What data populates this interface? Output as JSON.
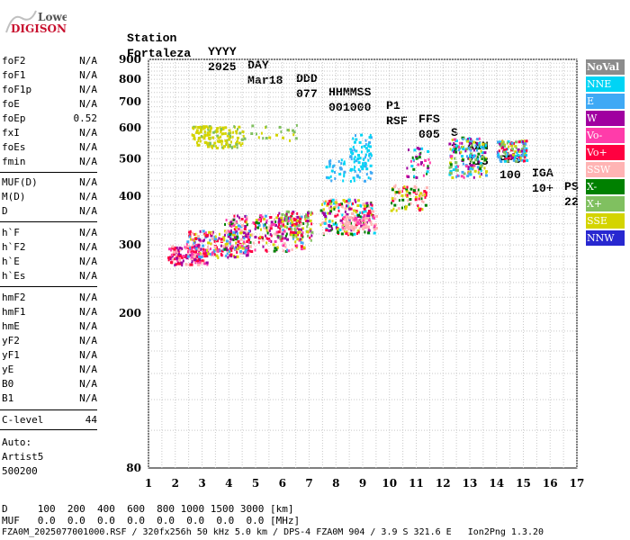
{
  "logo": {
    "top": "Lowell",
    "bottom": "DIGISONDE"
  },
  "header": {
    "labels": [
      "Station",
      "YYYY",
      "DAY",
      "DDD",
      "HHMMSS",
      "P1",
      "FFS",
      "S",
      "AXN",
      "PPS",
      "IGA",
      "PS"
    ],
    "values": [
      "Fortaleza",
      "2025",
      "Mar18",
      "077",
      "001000",
      "RSF",
      "005",
      "2",
      "713",
      "100",
      "10+",
      "22"
    ]
  },
  "params": {
    "group1": [
      {
        "k": "foF2",
        "v": "N/A"
      },
      {
        "k": "foF1",
        "v": "N/A"
      },
      {
        "k": "foF1p",
        "v": "N/A"
      },
      {
        "k": "foE",
        "v": "N/A"
      },
      {
        "k": "foEp",
        "v": "0.52"
      },
      {
        "k": "fxI",
        "v": "N/A"
      },
      {
        "k": "foEs",
        "v": "N/A"
      },
      {
        "k": "fmin",
        "v": "N/A"
      }
    ],
    "group2": [
      {
        "k": "MUF(D)",
        "v": "N/A"
      },
      {
        "k": "M(D)",
        "v": "N/A"
      },
      {
        "k": "D",
        "v": "N/A"
      }
    ],
    "group3": [
      {
        "k": "h`F",
        "v": "N/A"
      },
      {
        "k": "h`F2",
        "v": "N/A"
      },
      {
        "k": "h`E",
        "v": "N/A"
      },
      {
        "k": "h`Es",
        "v": "N/A"
      }
    ],
    "group4": [
      {
        "k": "hmF2",
        "v": "N/A"
      },
      {
        "k": "hmF1",
        "v": "N/A"
      },
      {
        "k": "hmE",
        "v": "N/A"
      },
      {
        "k": "yF2",
        "v": "N/A"
      },
      {
        "k": "yF1",
        "v": "N/A"
      },
      {
        "k": "yE",
        "v": "N/A"
      },
      {
        "k": "B0",
        "v": "N/A"
      },
      {
        "k": "B1",
        "v": "N/A"
      }
    ],
    "clevel": {
      "k": "C-level",
      "v": "44"
    },
    "auto": [
      "Auto:",
      "Artist5",
      "500200"
    ]
  },
  "legend": [
    {
      "label": "NoVal",
      "color": "#8c8c8c"
    },
    {
      "label": "NNE",
      "color": "#00d4f5"
    },
    {
      "label": "E",
      "color": "#3fa9f5"
    },
    {
      "label": "W",
      "color": "#a000a0"
    },
    {
      "label": "Vo-",
      "color": "#ff3caa"
    },
    {
      "label": "Vo+",
      "color": "#ff0040"
    },
    {
      "label": "SSW",
      "color": "#ffb4b4"
    },
    {
      "label": "X-",
      "color": "#008000"
    },
    {
      "label": "X+",
      "color": "#80c060"
    },
    {
      "label": "SSE",
      "color": "#d4d400"
    },
    {
      "label": "NNW",
      "color": "#2828d0"
    }
  ],
  "footer": {
    "line1": "D     100  200  400  600  800 1000 1500 3000 [km]",
    "line2": "MUF   0.0  0.0  0.0  0.0  0.0  0.0  0.0  0.0 [MHz]",
    "line3": "FZA0M_2025077001000.RSF / 320fx256h 50 kHz 5.0 km / DPS-4 FZA0M 904 / 3.9 S 321.6 E   Ion2Png 1.3.20"
  },
  "chart_data": {
    "type": "scatter",
    "title": "",
    "xlabel": "",
    "ylabel": "",
    "xlim": [
      1,
      17
    ],
    "ylim": [
      80,
      900
    ],
    "y_scale": "log",
    "x_ticks": [
      1,
      2,
      3,
      4,
      5,
      6,
      7,
      8,
      9,
      10,
      11,
      12,
      13,
      14,
      15,
      16,
      17
    ],
    "y_ticks": [
      80,
      200,
      300,
      400,
      500,
      600,
      700,
      800,
      900
    ],
    "grid": true,
    "legend_position": "right",
    "clusters": [
      {
        "xmin": 1.7,
        "xmax": 3.2,
        "ymin": 268,
        "ymax": 300,
        "n": 170,
        "colors": [
          "Vo+",
          "Vo+",
          "Vo-",
          "W",
          "SSW"
        ]
      },
      {
        "xmin": 2.4,
        "xmax": 4.8,
        "ymin": 280,
        "ymax": 330,
        "n": 220,
        "colors": [
          "Vo+",
          "SSW",
          "Vo-",
          "W",
          "SSE",
          "E"
        ]
      },
      {
        "xmin": 3.8,
        "xmax": 6.8,
        "ymin": 290,
        "ymax": 360,
        "n": 240,
        "colors": [
          "Vo+",
          "SSE",
          "SSW",
          "W",
          "E",
          "X-",
          "Vo-"
        ]
      },
      {
        "xmin": 5.8,
        "xmax": 7.1,
        "ymin": 310,
        "ymax": 370,
        "n": 90,
        "colors": [
          "SSE",
          "Vo+",
          "X+",
          "W"
        ]
      },
      {
        "xmin": 7.4,
        "xmax": 9.4,
        "ymin": 320,
        "ymax": 395,
        "n": 200,
        "colors": [
          "SSE",
          "W",
          "Vo+",
          "SSW",
          "X-",
          "NNE"
        ]
      },
      {
        "xmin": 8.2,
        "xmax": 9.5,
        "ymin": 330,
        "ymax": 360,
        "n": 80,
        "colors": [
          "SSW",
          "SSW",
          "Vo-"
        ]
      },
      {
        "xmin": 7.6,
        "xmax": 8.4,
        "ymin": 440,
        "ymax": 500,
        "n": 30,
        "colors": [
          "NNE",
          "E"
        ]
      },
      {
        "xmin": 8.5,
        "xmax": 9.3,
        "ymin": 440,
        "ymax": 580,
        "n": 80,
        "colors": [
          "NNE",
          "NNE",
          "E"
        ]
      },
      {
        "xmin": 10.0,
        "xmax": 11.4,
        "ymin": 370,
        "ymax": 430,
        "n": 80,
        "colors": [
          "SSW",
          "Vo+",
          "X-",
          "SSE"
        ]
      },
      {
        "xmin": 10.6,
        "xmax": 11.5,
        "ymin": 450,
        "ymax": 540,
        "n": 35,
        "colors": [
          "NNE",
          "X-",
          "Vo-",
          "W"
        ]
      },
      {
        "xmin": 12.2,
        "xmax": 13.6,
        "ymin": 450,
        "ymax": 570,
        "n": 170,
        "colors": [
          "NNE",
          "W",
          "E",
          "Vo-",
          "X+",
          "X-",
          "SSE"
        ]
      },
      {
        "xmin": 14.0,
        "xmax": 15.1,
        "ymin": 495,
        "ymax": 560,
        "n": 120,
        "colors": [
          "NNE",
          "E",
          "W",
          "SSE",
          "X+",
          "Vo+"
        ]
      },
      {
        "xmin": 2.6,
        "xmax": 4.5,
        "ymin": 535,
        "ymax": 610,
        "n": 140,
        "colors": [
          "SSE",
          "SSE",
          "SSE",
          "X+"
        ]
      },
      {
        "xmin": 4.5,
        "xmax": 6.6,
        "ymin": 560,
        "ymax": 615,
        "n": 25,
        "colors": [
          "SSE",
          "X+"
        ]
      }
    ]
  }
}
